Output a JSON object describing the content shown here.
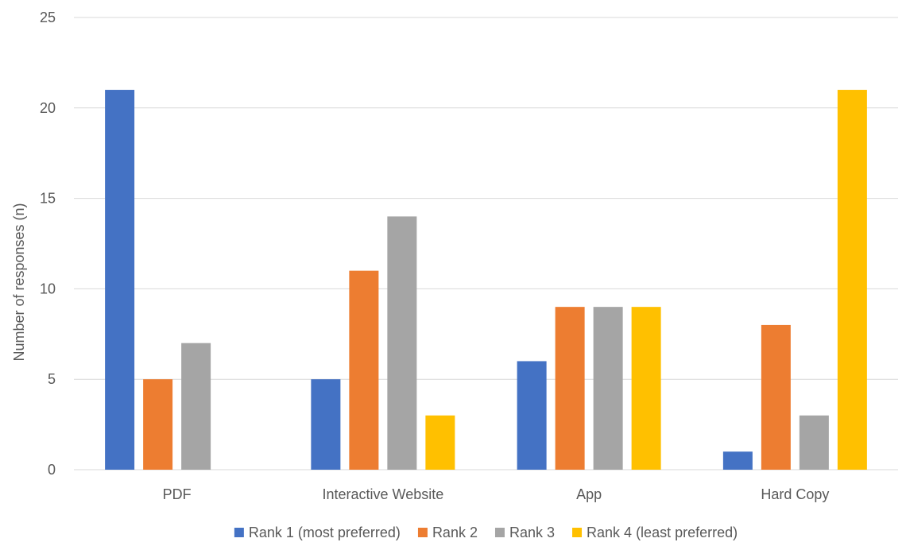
{
  "chart_data": {
    "type": "bar",
    "categories": [
      "PDF",
      "Interactive Website",
      "App",
      "Hard Copy"
    ],
    "series": [
      {
        "name": "Rank 1 (most preferred)",
        "color": "#4472C4",
        "values": [
          21,
          5,
          6,
          1
        ]
      },
      {
        "name": "Rank 2",
        "color": "#ED7D31",
        "values": [
          5,
          11,
          9,
          8
        ]
      },
      {
        "name": "Rank 3",
        "color": "#A5A5A5",
        "values": [
          7,
          14,
          9,
          3
        ]
      },
      {
        "name": "Rank 4 (least preferred)",
        "color": "#FFC000",
        "values": [
          0,
          3,
          9,
          21
        ]
      }
    ],
    "title": "",
    "xlabel": "",
    "ylabel": "Number of responses (n)",
    "ylim": [
      0,
      25
    ],
    "yticks": [
      0,
      5,
      10,
      15,
      20,
      25
    ],
    "grid": true,
    "legend_position": "bottom"
  }
}
